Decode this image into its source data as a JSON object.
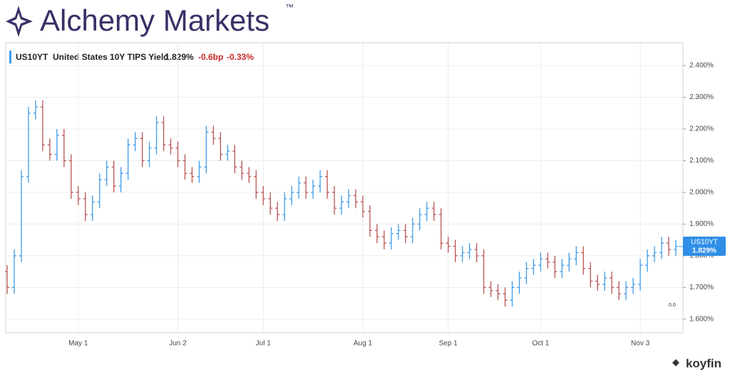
{
  "brand": "Alchemy Markets",
  "trademark": "™",
  "source": "koyfin",
  "chart_data": {
    "type": "ohlc",
    "symbol": "US10YT",
    "title": "United States 10Y TIPS Yield",
    "last": {
      "value": 1.829,
      "label": "1.829%"
    },
    "change": "-0.6bp",
    "change_pct": "-0.33%",
    "annotation": "0.0",
    "up_color": "#3d9be9",
    "down_color": "#b85450",
    "categories": [
      null,
      null,
      null,
      null,
      null,
      null,
      null,
      null,
      null,
      null,
      "May 1",
      null,
      null,
      null,
      null,
      null,
      null,
      null,
      null,
      null,
      null,
      null,
      null,
      null,
      "Jun 2",
      null,
      null,
      null,
      null,
      null,
      null,
      null,
      null,
      null,
      null,
      null,
      "Jul 1",
      null,
      null,
      null,
      null,
      null,
      null,
      null,
      null,
      null,
      null,
      null,
      null,
      null,
      "Aug 1",
      null,
      null,
      null,
      null,
      null,
      null,
      null,
      null,
      null,
      null,
      null,
      "Sep 1",
      null,
      null,
      null,
      null,
      null,
      null,
      null,
      null,
      null,
      null,
      null,
      null,
      "Oct 1",
      null,
      null,
      null,
      null,
      null,
      null,
      null,
      null,
      null,
      null,
      null,
      null,
      null,
      "Nov 3",
      null,
      null,
      null,
      null,
      null
    ],
    "series": [
      {
        "name": "US10YT",
        "open": [
          1.75,
          1.7,
          1.8,
          2.05,
          2.25,
          2.27,
          2.15,
          2.12,
          2.18,
          2.1,
          2.0,
          1.98,
          1.93,
          1.97,
          2.04,
          2.08,
          2.02,
          2.06,
          2.15,
          2.17,
          2.1,
          2.14,
          2.22,
          2.15,
          2.14,
          2.1,
          2.06,
          2.05,
          2.08,
          2.19,
          2.17,
          2.12,
          2.13,
          2.08,
          2.06,
          2.05,
          2.0,
          1.98,
          1.95,
          1.93,
          1.98,
          2.0,
          2.03,
          2.0,
          2.02,
          2.05,
          2.0,
          1.95,
          1.97,
          1.99,
          1.97,
          1.94,
          1.88,
          1.86,
          1.84,
          1.87,
          1.88,
          1.86,
          1.9,
          1.93,
          1.95,
          1.93,
          1.84,
          1.83,
          1.8,
          1.81,
          1.82,
          1.8,
          1.7,
          1.69,
          1.68,
          1.66,
          1.7,
          1.73,
          1.76,
          1.77,
          1.79,
          1.78,
          1.75,
          1.77,
          1.79,
          1.81,
          1.76,
          1.72,
          1.71,
          1.73,
          1.7,
          1.68,
          1.7,
          1.71,
          1.77,
          1.8,
          1.81,
          1.84,
          1.82
        ],
        "high": [
          1.77,
          1.82,
          2.07,
          2.27,
          2.29,
          2.29,
          2.17,
          2.2,
          2.2,
          2.12,
          2.02,
          2.0,
          1.99,
          2.06,
          2.1,
          2.1,
          2.08,
          2.17,
          2.19,
          2.19,
          2.16,
          2.24,
          2.24,
          2.17,
          2.16,
          2.12,
          2.08,
          2.1,
          2.21,
          2.21,
          2.19,
          2.15,
          2.15,
          2.1,
          2.08,
          2.07,
          2.02,
          2.0,
          1.97,
          2.0,
          2.02,
          2.05,
          2.05,
          2.04,
          2.07,
          2.07,
          2.02,
          1.99,
          2.01,
          2.01,
          1.99,
          1.96,
          1.9,
          1.88,
          1.89,
          1.9,
          1.9,
          1.92,
          1.95,
          1.97,
          1.97,
          1.95,
          1.86,
          1.85,
          1.83,
          1.84,
          1.84,
          1.82,
          1.72,
          1.71,
          1.7,
          1.72,
          1.75,
          1.78,
          1.79,
          1.81,
          1.81,
          1.8,
          1.79,
          1.81,
          1.83,
          1.83,
          1.78,
          1.74,
          1.75,
          1.75,
          1.72,
          1.72,
          1.73,
          1.79,
          1.82,
          1.83,
          1.86,
          1.86,
          1.85
        ],
        "low": [
          1.68,
          1.68,
          1.78,
          2.03,
          2.23,
          2.13,
          2.1,
          2.1,
          2.08,
          1.98,
          1.96,
          1.91,
          1.91,
          1.95,
          2.02,
          2.0,
          2.0,
          2.04,
          2.13,
          2.08,
          2.08,
          2.12,
          2.13,
          2.12,
          2.08,
          2.04,
          2.03,
          2.03,
          2.06,
          2.15,
          2.1,
          2.1,
          2.06,
          2.04,
          2.03,
          1.98,
          1.96,
          1.93,
          1.91,
          1.91,
          1.96,
          1.98,
          1.98,
          1.98,
          2.0,
          1.98,
          1.93,
          1.93,
          1.95,
          1.95,
          1.92,
          1.86,
          1.84,
          1.82,
          1.82,
          1.85,
          1.84,
          1.84,
          1.88,
          1.91,
          1.91,
          1.82,
          1.81,
          1.78,
          1.78,
          1.79,
          1.78,
          1.68,
          1.67,
          1.66,
          1.64,
          1.64,
          1.68,
          1.71,
          1.74,
          1.75,
          1.76,
          1.73,
          1.73,
          1.75,
          1.77,
          1.74,
          1.7,
          1.69,
          1.69,
          1.68,
          1.66,
          1.66,
          1.68,
          1.69,
          1.75,
          1.78,
          1.79,
          1.8,
          1.8
        ],
        "close": [
          1.7,
          1.8,
          2.05,
          2.25,
          2.27,
          2.15,
          2.12,
          2.18,
          2.1,
          2.0,
          1.98,
          1.93,
          1.97,
          2.04,
          2.08,
          2.02,
          2.06,
          2.15,
          2.17,
          2.1,
          2.14,
          2.22,
          2.15,
          2.14,
          2.1,
          2.06,
          2.05,
          2.08,
          2.19,
          2.17,
          2.12,
          2.13,
          2.08,
          2.06,
          2.05,
          2.0,
          1.98,
          1.95,
          1.93,
          1.98,
          2.0,
          2.03,
          2.0,
          2.02,
          2.05,
          2.0,
          1.95,
          1.97,
          1.99,
          1.97,
          1.94,
          1.88,
          1.86,
          1.84,
          1.87,
          1.88,
          1.86,
          1.9,
          1.93,
          1.95,
          1.93,
          1.84,
          1.83,
          1.8,
          1.81,
          1.82,
          1.8,
          1.7,
          1.69,
          1.68,
          1.66,
          1.7,
          1.73,
          1.76,
          1.77,
          1.79,
          1.78,
          1.75,
          1.77,
          1.79,
          1.81,
          1.76,
          1.72,
          1.71,
          1.73,
          1.7,
          1.68,
          1.7,
          1.71,
          1.77,
          1.8,
          1.81,
          1.84,
          1.82,
          1.83
        ]
      }
    ],
    "ylim": [
      1.557,
      2.472
    ],
    "yticks": [
      {
        "value": 1.6,
        "label": "1.600%"
      },
      {
        "value": 1.7,
        "label": "1.700%"
      },
      {
        "value": 1.8,
        "label": "1.800%"
      },
      {
        "value": 1.9,
        "label": "1.900%"
      },
      {
        "value": 2.0,
        "label": "2.000%"
      },
      {
        "value": 2.1,
        "label": "2.100%"
      },
      {
        "value": 2.2,
        "label": "2.200%"
      },
      {
        "value": 2.3,
        "label": "2.300%"
      },
      {
        "value": 2.4,
        "label": "2.400%"
      }
    ],
    "grid": true
  }
}
